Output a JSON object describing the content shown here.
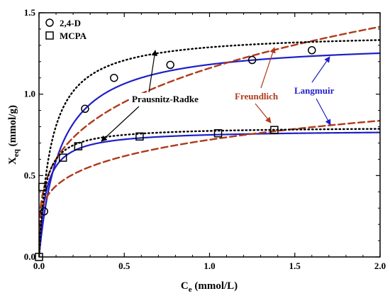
{
  "chart_data": {
    "type": "scatter",
    "xlabel_main": "C",
    "xlabel_sub": "e",
    "xlabel_unit": " (mmol/L)",
    "ylabel_main": "X",
    "ylabel_sub": "eq",
    "ylabel_unit": " (mmol/g)",
    "xlim": [
      0,
      2.0
    ],
    "ylim": [
      0,
      1.5
    ],
    "x_ticks": [
      "0.0",
      "0.5",
      "1.0",
      "1.5",
      "2.0"
    ],
    "y_ticks": [
      "0.0",
      "0.5",
      "1.0",
      "1.5"
    ],
    "grid": false,
    "legend_position": "top-left",
    "legend": [
      {
        "label": "2,4-D",
        "marker": "circle"
      },
      {
        "label": "MCPA",
        "marker": "square"
      }
    ],
    "series": [
      {
        "name": "2,4-D",
        "marker": "circle",
        "points": [
          [
            0.03,
            0.28
          ],
          [
            0.27,
            0.91
          ],
          [
            0.44,
            1.1
          ],
          [
            0.77,
            1.18
          ],
          [
            1.25,
            1.21
          ],
          [
            1.6,
            1.27
          ]
        ]
      },
      {
        "name": "MCPA",
        "marker": "square",
        "points": [
          [
            0.0,
            0.0
          ],
          [
            0.02,
            0.43
          ],
          [
            0.14,
            0.61
          ],
          [
            0.23,
            0.68
          ],
          [
            0.59,
            0.74
          ],
          [
            1.05,
            0.76
          ],
          [
            1.38,
            0.78
          ]
        ]
      }
    ],
    "fits": [
      {
        "model": "Langmuir",
        "compound": "2,4-D",
        "qmax": 1.33,
        "K": 8.0,
        "style": "solid",
        "color": "#1f1fc8"
      },
      {
        "model": "Langmuir",
        "compound": "MCPA",
        "qmax": 0.78,
        "K": 25.0,
        "style": "solid",
        "color": "#1f1fc8"
      },
      {
        "model": "Freundlich",
        "compound": "2,4-D",
        "Kf": 1.16,
        "n": 3.5,
        "style": "dashed",
        "color": "#b03a1a"
      },
      {
        "model": "Freundlich",
        "compound": "MCPA",
        "Kf": 0.72,
        "n": 4.6,
        "style": "dashed",
        "color": "#b03a1a"
      },
      {
        "model": "Prausnitz-Radke",
        "compound": "2,4-D",
        "qmax": 1.38,
        "K": 14.0,
        "style": "dotted",
        "color": "#000000"
      },
      {
        "model": "Prausnitz-Radke",
        "compound": "MCPA",
        "qmax": 0.8,
        "K": 30.0,
        "style": "dotted",
        "color": "#000000"
      }
    ],
    "annotations": [
      {
        "text": "Prausnitz-Radke",
        "color": "#000000"
      },
      {
        "text": "Freundlich",
        "color": "#b03a1a"
      },
      {
        "text": "Langmuir",
        "color": "#1f1fc8"
      }
    ]
  }
}
